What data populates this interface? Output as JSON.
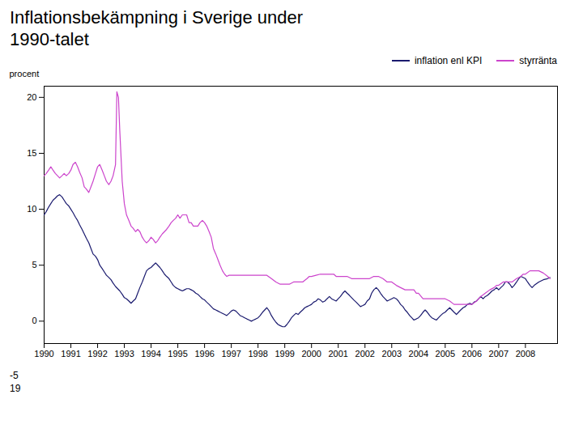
{
  "chart_data": {
    "type": "line",
    "title": "Inflationsbekämpning i Sverige under\n1990-talet",
    "ylabel": "procent",
    "xlim": [
      1990.0,
      2009.2
    ],
    "xticks": [
      1990,
      1991,
      1992,
      1993,
      1994,
      1995,
      1996,
      1997,
      1998,
      1999,
      2000,
      2001,
      2002,
      2003,
      2004,
      2005,
      2006,
      2007,
      2008
    ],
    "ylim": [
      -2,
      21
    ],
    "yticks": [
      0,
      5,
      10,
      15,
      20
    ],
    "grid": false,
    "legend": "upper right",
    "annotations": [
      "-5",
      "19"
    ],
    "series": [
      {
        "name": "inflation enl KPI",
        "color": "#1a1a6e",
        "x": [
          1990.0,
          1990.08,
          1990.17,
          1990.25,
          1990.33,
          1990.42,
          1990.5,
          1990.58,
          1990.67,
          1990.75,
          1990.83,
          1990.92,
          1991.0,
          1991.08,
          1991.17,
          1991.25,
          1991.33,
          1991.42,
          1991.5,
          1991.58,
          1991.67,
          1991.75,
          1991.83,
          1991.92,
          1992.0,
          1992.08,
          1992.17,
          1992.25,
          1992.33,
          1992.42,
          1992.5,
          1992.58,
          1992.67,
          1992.75,
          1992.83,
          1992.92,
          1993.0,
          1993.08,
          1993.17,
          1993.25,
          1993.33,
          1993.42,
          1993.5,
          1993.58,
          1993.67,
          1993.75,
          1993.83,
          1993.92,
          1994.0,
          1994.08,
          1994.17,
          1994.25,
          1994.33,
          1994.42,
          1994.5,
          1994.58,
          1994.67,
          1994.75,
          1994.83,
          1994.92,
          1995.0,
          1995.08,
          1995.17,
          1995.25,
          1995.33,
          1995.42,
          1995.5,
          1995.58,
          1995.67,
          1995.75,
          1995.83,
          1995.92,
          1996.0,
          1996.08,
          1996.17,
          1996.25,
          1996.33,
          1996.42,
          1996.5,
          1996.58,
          1996.67,
          1996.75,
          1996.83,
          1996.92,
          1997.0,
          1997.08,
          1997.17,
          1997.25,
          1997.33,
          1997.42,
          1997.5,
          1997.58,
          1997.67,
          1997.75,
          1997.83,
          1997.92,
          1998.0,
          1998.08,
          1998.17,
          1998.25,
          1998.33,
          1998.42,
          1998.5,
          1998.58,
          1998.67,
          1998.75,
          1998.83,
          1998.92,
          1999.0,
          1999.08,
          1999.17,
          1999.25,
          1999.33,
          1999.42,
          1999.5,
          1999.58,
          1999.67,
          1999.75,
          1999.83,
          1999.92,
          2000.0,
          2000.08,
          2000.17,
          2000.25,
          2000.33,
          2000.42,
          2000.5,
          2000.58,
          2000.67,
          2000.75,
          2000.83,
          2000.92,
          2001.0,
          2001.08,
          2001.17,
          2001.25,
          2001.33,
          2001.42,
          2001.5,
          2001.58,
          2001.67,
          2001.75,
          2001.83,
          2001.92,
          2002.0,
          2002.08,
          2002.17,
          2002.25,
          2002.33,
          2002.42,
          2002.5,
          2002.58,
          2002.67,
          2002.75,
          2002.83,
          2002.92,
          2003.0,
          2003.08,
          2003.17,
          2003.25,
          2003.33,
          2003.42,
          2003.5,
          2003.58,
          2003.67,
          2003.75,
          2003.83,
          2003.92,
          2004.0,
          2004.08,
          2004.17,
          2004.25,
          2004.33,
          2004.42,
          2004.5,
          2004.58,
          2004.67,
          2004.75,
          2004.83,
          2004.92,
          2005.0,
          2005.08,
          2005.17,
          2005.25,
          2005.33,
          2005.42,
          2005.5,
          2005.58,
          2005.67,
          2005.75,
          2005.83,
          2005.92,
          2006.0,
          2006.08,
          2006.17,
          2006.25,
          2006.33,
          2006.42,
          2006.5,
          2006.58,
          2006.67,
          2006.75,
          2006.83,
          2006.92,
          2007.0,
          2007.08,
          2007.17,
          2007.25,
          2007.33,
          2007.42,
          2007.5,
          2007.58,
          2007.67,
          2007.75,
          2007.83,
          2007.92,
          2008.0,
          2008.08,
          2008.17,
          2008.25,
          2008.33,
          2008.5,
          2008.67,
          2008.83,
          2008.92
        ],
        "values": [
          9.5,
          9.8,
          10.2,
          10.5,
          10.8,
          11.0,
          11.2,
          11.3,
          11.1,
          10.8,
          10.5,
          10.3,
          10.0,
          9.7,
          9.3,
          9.0,
          8.6,
          8.2,
          7.8,
          7.4,
          7.0,
          6.5,
          6.0,
          5.8,
          5.5,
          5.0,
          4.7,
          4.4,
          4.1,
          3.9,
          3.7,
          3.4,
          3.1,
          2.9,
          2.7,
          2.4,
          2.1,
          2.0,
          1.8,
          1.6,
          1.8,
          2.0,
          2.5,
          3.0,
          3.5,
          4.0,
          4.5,
          4.7,
          4.8,
          5.0,
          5.2,
          5.0,
          4.8,
          4.5,
          4.2,
          4.0,
          3.8,
          3.5,
          3.2,
          3.0,
          2.9,
          2.8,
          2.7,
          2.8,
          2.9,
          2.9,
          2.8,
          2.7,
          2.5,
          2.4,
          2.2,
          2.0,
          1.9,
          1.7,
          1.5,
          1.3,
          1.1,
          1.0,
          0.9,
          0.8,
          0.7,
          0.6,
          0.5,
          0.7,
          0.9,
          1.0,
          0.9,
          0.7,
          0.5,
          0.4,
          0.3,
          0.2,
          0.1,
          0.0,
          0.1,
          0.2,
          0.3,
          0.5,
          0.8,
          1.0,
          1.2,
          0.9,
          0.5,
          0.2,
          -0.1,
          -0.3,
          -0.4,
          -0.5,
          -0.5,
          -0.3,
          0.0,
          0.3,
          0.5,
          0.7,
          0.6,
          0.8,
          1.0,
          1.2,
          1.3,
          1.4,
          1.5,
          1.7,
          1.8,
          2.0,
          1.9,
          1.7,
          1.8,
          2.0,
          2.2,
          2.0,
          1.9,
          1.8,
          2.0,
          2.2,
          2.5,
          2.7,
          2.5,
          2.3,
          2.1,
          1.9,
          1.7,
          1.5,
          1.3,
          1.4,
          1.5,
          1.8,
          2.0,
          2.5,
          2.8,
          3.0,
          2.8,
          2.5,
          2.2,
          2.0,
          1.8,
          1.9,
          2.0,
          2.1,
          2.0,
          1.8,
          1.5,
          1.3,
          1.0,
          0.8,
          0.5,
          0.3,
          0.1,
          0.2,
          0.3,
          0.5,
          0.8,
          1.0,
          0.8,
          0.5,
          0.3,
          0.2,
          0.1,
          0.3,
          0.5,
          0.7,
          0.8,
          1.0,
          1.2,
          1.0,
          0.8,
          0.6,
          0.8,
          1.0,
          1.2,
          1.3,
          1.5,
          1.6,
          1.5,
          1.7,
          1.8,
          2.0,
          2.2,
          2.0,
          2.2,
          2.3,
          2.5,
          2.7,
          2.8,
          3.0,
          2.8,
          3.0,
          3.2,
          3.5,
          3.5,
          3.3,
          3.0,
          3.2,
          3.5,
          3.8,
          4.0,
          3.9,
          3.8,
          3.5,
          3.2,
          3.0,
          3.2,
          3.5,
          3.7,
          3.8,
          3.9
        ]
      },
      {
        "name": "styrränta",
        "color": "#cc44cc",
        "x": [
          1990.0,
          1990.08,
          1990.17,
          1990.25,
          1990.33,
          1990.42,
          1990.5,
          1990.58,
          1990.67,
          1990.75,
          1990.83,
          1990.92,
          1991.0,
          1991.08,
          1991.17,
          1991.25,
          1991.33,
          1991.42,
          1991.5,
          1991.58,
          1991.67,
          1991.75,
          1991.83,
          1991.92,
          1992.0,
          1992.08,
          1992.17,
          1992.25,
          1992.33,
          1992.42,
          1992.5,
          1992.58,
          1992.67,
          1992.72,
          1992.78,
          1992.83,
          1992.92,
          1993.0,
          1993.08,
          1993.17,
          1993.25,
          1993.33,
          1993.42,
          1993.5,
          1993.58,
          1993.67,
          1993.75,
          1993.83,
          1993.92,
          1994.0,
          1994.08,
          1994.17,
          1994.25,
          1994.33,
          1994.42,
          1994.5,
          1994.58,
          1994.67,
          1994.75,
          1994.83,
          1994.92,
          1995.0,
          1995.08,
          1995.17,
          1995.25,
          1995.33,
          1995.42,
          1995.5,
          1995.58,
          1995.67,
          1995.75,
          1995.83,
          1995.92,
          1996.0,
          1996.08,
          1996.17,
          1996.25,
          1996.33,
          1996.42,
          1996.5,
          1996.58,
          1996.67,
          1996.75,
          1996.83,
          1996.92,
          1997.0,
          1997.17,
          1997.33,
          1997.5,
          1997.67,
          1997.83,
          1997.92,
          1998.0,
          1998.17,
          1998.33,
          1998.5,
          1998.67,
          1998.83,
          1998.92,
          1999.0,
          1999.17,
          1999.33,
          1999.5,
          1999.67,
          1999.83,
          1999.92,
          2000.0,
          2000.17,
          2000.33,
          2000.5,
          2000.67,
          2000.83,
          2000.92,
          2001.0,
          2001.17,
          2001.33,
          2001.5,
          2001.67,
          2001.83,
          2001.92,
          2002.0,
          2002.17,
          2002.33,
          2002.5,
          2002.67,
          2002.83,
          2002.92,
          2003.0,
          2003.17,
          2003.33,
          2003.5,
          2003.67,
          2003.83,
          2003.92,
          2004.0,
          2004.17,
          2004.33,
          2004.5,
          2004.67,
          2004.83,
          2004.92,
          2005.0,
          2005.17,
          2005.33,
          2005.5,
          2005.67,
          2005.83,
          2005.92,
          2006.0,
          2006.17,
          2006.33,
          2006.5,
          2006.67,
          2006.83,
          2006.92,
          2007.0,
          2007.17,
          2007.33,
          2007.5,
          2007.67,
          2007.83,
          2007.92,
          2008.0,
          2008.17,
          2008.33,
          2008.5,
          2008.67,
          2008.83,
          2008.92
        ],
        "values": [
          13.0,
          13.2,
          13.5,
          13.8,
          13.5,
          13.2,
          13.0,
          12.8,
          13.0,
          13.2,
          13.0,
          13.2,
          13.5,
          14.0,
          14.2,
          13.8,
          13.3,
          12.8,
          12.0,
          11.8,
          11.5,
          12.0,
          12.5,
          13.2,
          13.8,
          14.0,
          13.5,
          13.0,
          12.5,
          12.2,
          12.5,
          13.0,
          14.0,
          20.5,
          20.0,
          17.0,
          12.5,
          10.5,
          9.5,
          9.0,
          8.5,
          8.3,
          8.0,
          8.2,
          8.0,
          7.5,
          7.2,
          7.0,
          7.2,
          7.5,
          7.3,
          7.0,
          7.2,
          7.5,
          7.8,
          8.0,
          8.2,
          8.5,
          8.8,
          9.0,
          9.2,
          9.5,
          9.2,
          9.5,
          9.5,
          9.5,
          8.8,
          8.8,
          8.5,
          8.5,
          8.5,
          8.8,
          9.0,
          8.8,
          8.5,
          8.0,
          7.5,
          6.5,
          6.0,
          5.5,
          5.0,
          4.5,
          4.2,
          4.0,
          4.1,
          4.1,
          4.1,
          4.1,
          4.1,
          4.1,
          4.1,
          4.1,
          4.1,
          4.1,
          4.1,
          3.8,
          3.5,
          3.3,
          3.3,
          3.3,
          3.3,
          3.5,
          3.5,
          3.5,
          3.8,
          4.0,
          4.0,
          4.1,
          4.2,
          4.2,
          4.2,
          4.2,
          4.0,
          4.0,
          4.0,
          4.0,
          3.8,
          3.8,
          3.8,
          3.8,
          3.8,
          3.8,
          4.0,
          4.0,
          3.8,
          3.5,
          3.5,
          3.5,
          3.2,
          3.0,
          2.8,
          2.8,
          2.8,
          2.5,
          2.5,
          2.0,
          2.0,
          2.0,
          2.0,
          2.0,
          2.0,
          2.0,
          1.8,
          1.5,
          1.5,
          1.5,
          1.5,
          1.5,
          1.5,
          1.8,
          2.2,
          2.5,
          2.8,
          3.0,
          3.2,
          3.2,
          3.5,
          3.5,
          3.5,
          3.8,
          4.0,
          4.2,
          4.2,
          4.5,
          4.5,
          4.5,
          4.3,
          4.0,
          3.8
        ]
      }
    ]
  }
}
